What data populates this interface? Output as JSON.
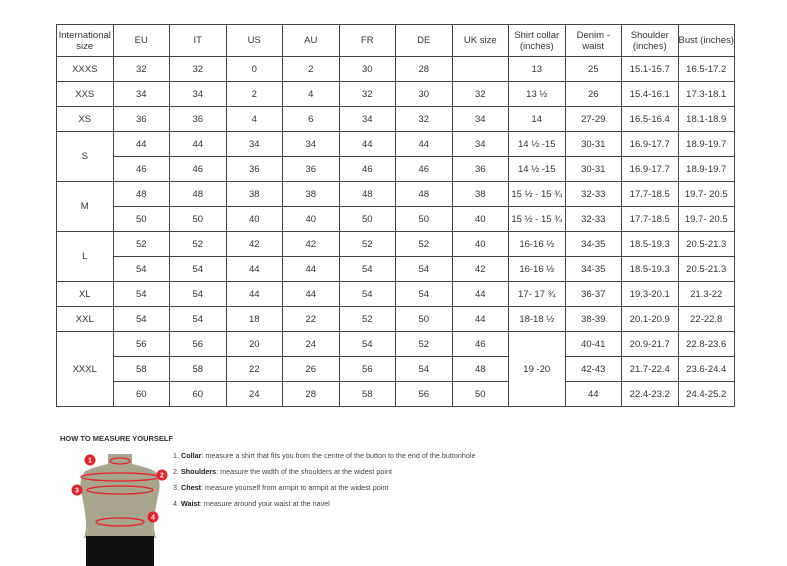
{
  "headers": [
    "International size",
    "EU",
    "IT",
    "US",
    "AU",
    "FR",
    "DE",
    "UK size",
    "Shirt collar (inches)",
    "Denim - waist",
    "Shoulder (inches)",
    "Bust (inches)"
  ],
  "rows": [
    {
      "size": "XXXS",
      "span": 1,
      "eu": "32",
      "it": "32",
      "us": "0",
      "au": "2",
      "fr": "30",
      "de": "28",
      "uk": "",
      "collar": "13",
      "cspan": 1,
      "waist": "25",
      "shoulder": "15.1-15.7",
      "bust": "16.5-17.2"
    },
    {
      "size": "XXS",
      "span": 1,
      "eu": "34",
      "it": "34",
      "us": "2",
      "au": "4",
      "fr": "32",
      "de": "30",
      "uk": "32",
      "collar": "13 ½",
      "cspan": 1,
      "waist": "26",
      "shoulder": "15.4-16.1",
      "bust": "17.3-18.1"
    },
    {
      "size": "XS",
      "span": 1,
      "eu": "36",
      "it": "36",
      "us": "4",
      "au": "6",
      "fr": "34",
      "de": "32",
      "uk": "34",
      "collar": "14",
      "cspan": 1,
      "waist": "27-29",
      "shoulder": "16.5-16.4",
      "bust": "18.1-18.9"
    },
    {
      "size": "S",
      "span": 2,
      "eu": "44",
      "it": "44",
      "us": "34",
      "au": "34",
      "fr": "44",
      "de": "44",
      "uk": "34",
      "collar": "14 ½ -15",
      "cspan": 1,
      "waist": "30-31",
      "shoulder": "16.9-17.7",
      "bust": "18.9-19.7"
    },
    {
      "eu": "46",
      "it": "46",
      "us": "36",
      "au": "36",
      "fr": "46",
      "de": "46",
      "uk": "36",
      "collar": "14 ½ -15",
      "cspan": 1,
      "waist": "30-31",
      "shoulder": "16.9-17.7",
      "bust": "18.9-19.7"
    },
    {
      "size": "M",
      "span": 2,
      "eu": "48",
      "it": "48",
      "us": "38",
      "au": "38",
      "fr": "48",
      "de": "48",
      "uk": "38",
      "collar": "15 ½ - 15 ¾",
      "cspan": 1,
      "waist": "32-33",
      "shoulder": "17.7-18.5",
      "bust": "19.7- 20.5"
    },
    {
      "eu": "50",
      "it": "50",
      "us": "40",
      "au": "40",
      "fr": "50",
      "de": "50",
      "uk": "40",
      "collar": "15 ½ - 15 ¾",
      "cspan": 1,
      "waist": "32-33",
      "shoulder": "17.7-18.5",
      "bust": "19.7- 20.5"
    },
    {
      "size": "L",
      "span": 2,
      "eu": "52",
      "it": "52",
      "us": "42",
      "au": "42",
      "fr": "52",
      "de": "52",
      "uk": "40",
      "collar": "16-16 ½",
      "cspan": 1,
      "waist": "34-35",
      "shoulder": "18.5-19.3",
      "bust": "20.5-21.3"
    },
    {
      "eu": "54",
      "it": "54",
      "us": "44",
      "au": "44",
      "fr": "54",
      "de": "54",
      "uk": "42",
      "collar": "16-16 ½",
      "cspan": 1,
      "waist": "34-35",
      "shoulder": "18.5-19.3",
      "bust": "20.5-21.3"
    },
    {
      "size": "XL",
      "span": 1,
      "eu": "54",
      "it": "54",
      "us": "44",
      "au": "44",
      "fr": "54",
      "de": "54",
      "uk": "44",
      "collar": "17- 17 ¾",
      "cspan": 1,
      "waist": "36-37",
      "shoulder": "19.3-20.1",
      "bust": "21.3-22"
    },
    {
      "size": "XXL",
      "span": 1,
      "eu": "54",
      "it": "54",
      "us": "18",
      "au": "22",
      "fr": "52",
      "de": "50",
      "uk": "44",
      "collar": "18-18 ½",
      "cspan": 1,
      "waist": "38-39",
      "shoulder": "20.1-20.9",
      "bust": "22-22.8"
    },
    {
      "size": "XXXL",
      "span": 3,
      "eu": "56",
      "it": "56",
      "us": "20",
      "au": "24",
      "fr": "54",
      "de": "52",
      "uk": "46",
      "collar": "19 -20",
      "cspan": 3,
      "waist": "40-41",
      "shoulder": "20.9-21.7",
      "bust": "22.8-23.6"
    },
    {
      "eu": "58",
      "it": "58",
      "us": "22",
      "au": "26",
      "fr": "56",
      "de": "54",
      "uk": "48",
      "waist": "42-43",
      "shoulder": "21.7-22.4",
      "bust": "23.6-24.4"
    },
    {
      "eu": "60",
      "it": "60",
      "us": "24",
      "au": "28",
      "fr": "58",
      "de": "56",
      "uk": "50",
      "waist": "44",
      "shoulder": "22.4-23.2",
      "bust": "24.4-25.2"
    }
  ],
  "guide": {
    "title": "HOW TO MEASURE YOURSELF",
    "markers": [
      "1",
      "2",
      "3",
      "4"
    ],
    "steps": [
      {
        "num": "1.",
        "term": "Collar",
        "text": ": measure a shirt that fits you from the centre of the button to the end of the buttonhole"
      },
      {
        "num": "2.",
        "term": "Shoulders",
        "text": ": measure the width of the shoulders at the widest point"
      },
      {
        "num": "3.",
        "term": "Chest",
        "text": ": measure yourself from armpit to armpit at the widest point"
      },
      {
        "num": "4.",
        "term": "Waist",
        "text": ": measure around your waist at the navel"
      }
    ]
  },
  "colors": {
    "accent": "#e3242b",
    "torso": "#a9a48f"
  }
}
